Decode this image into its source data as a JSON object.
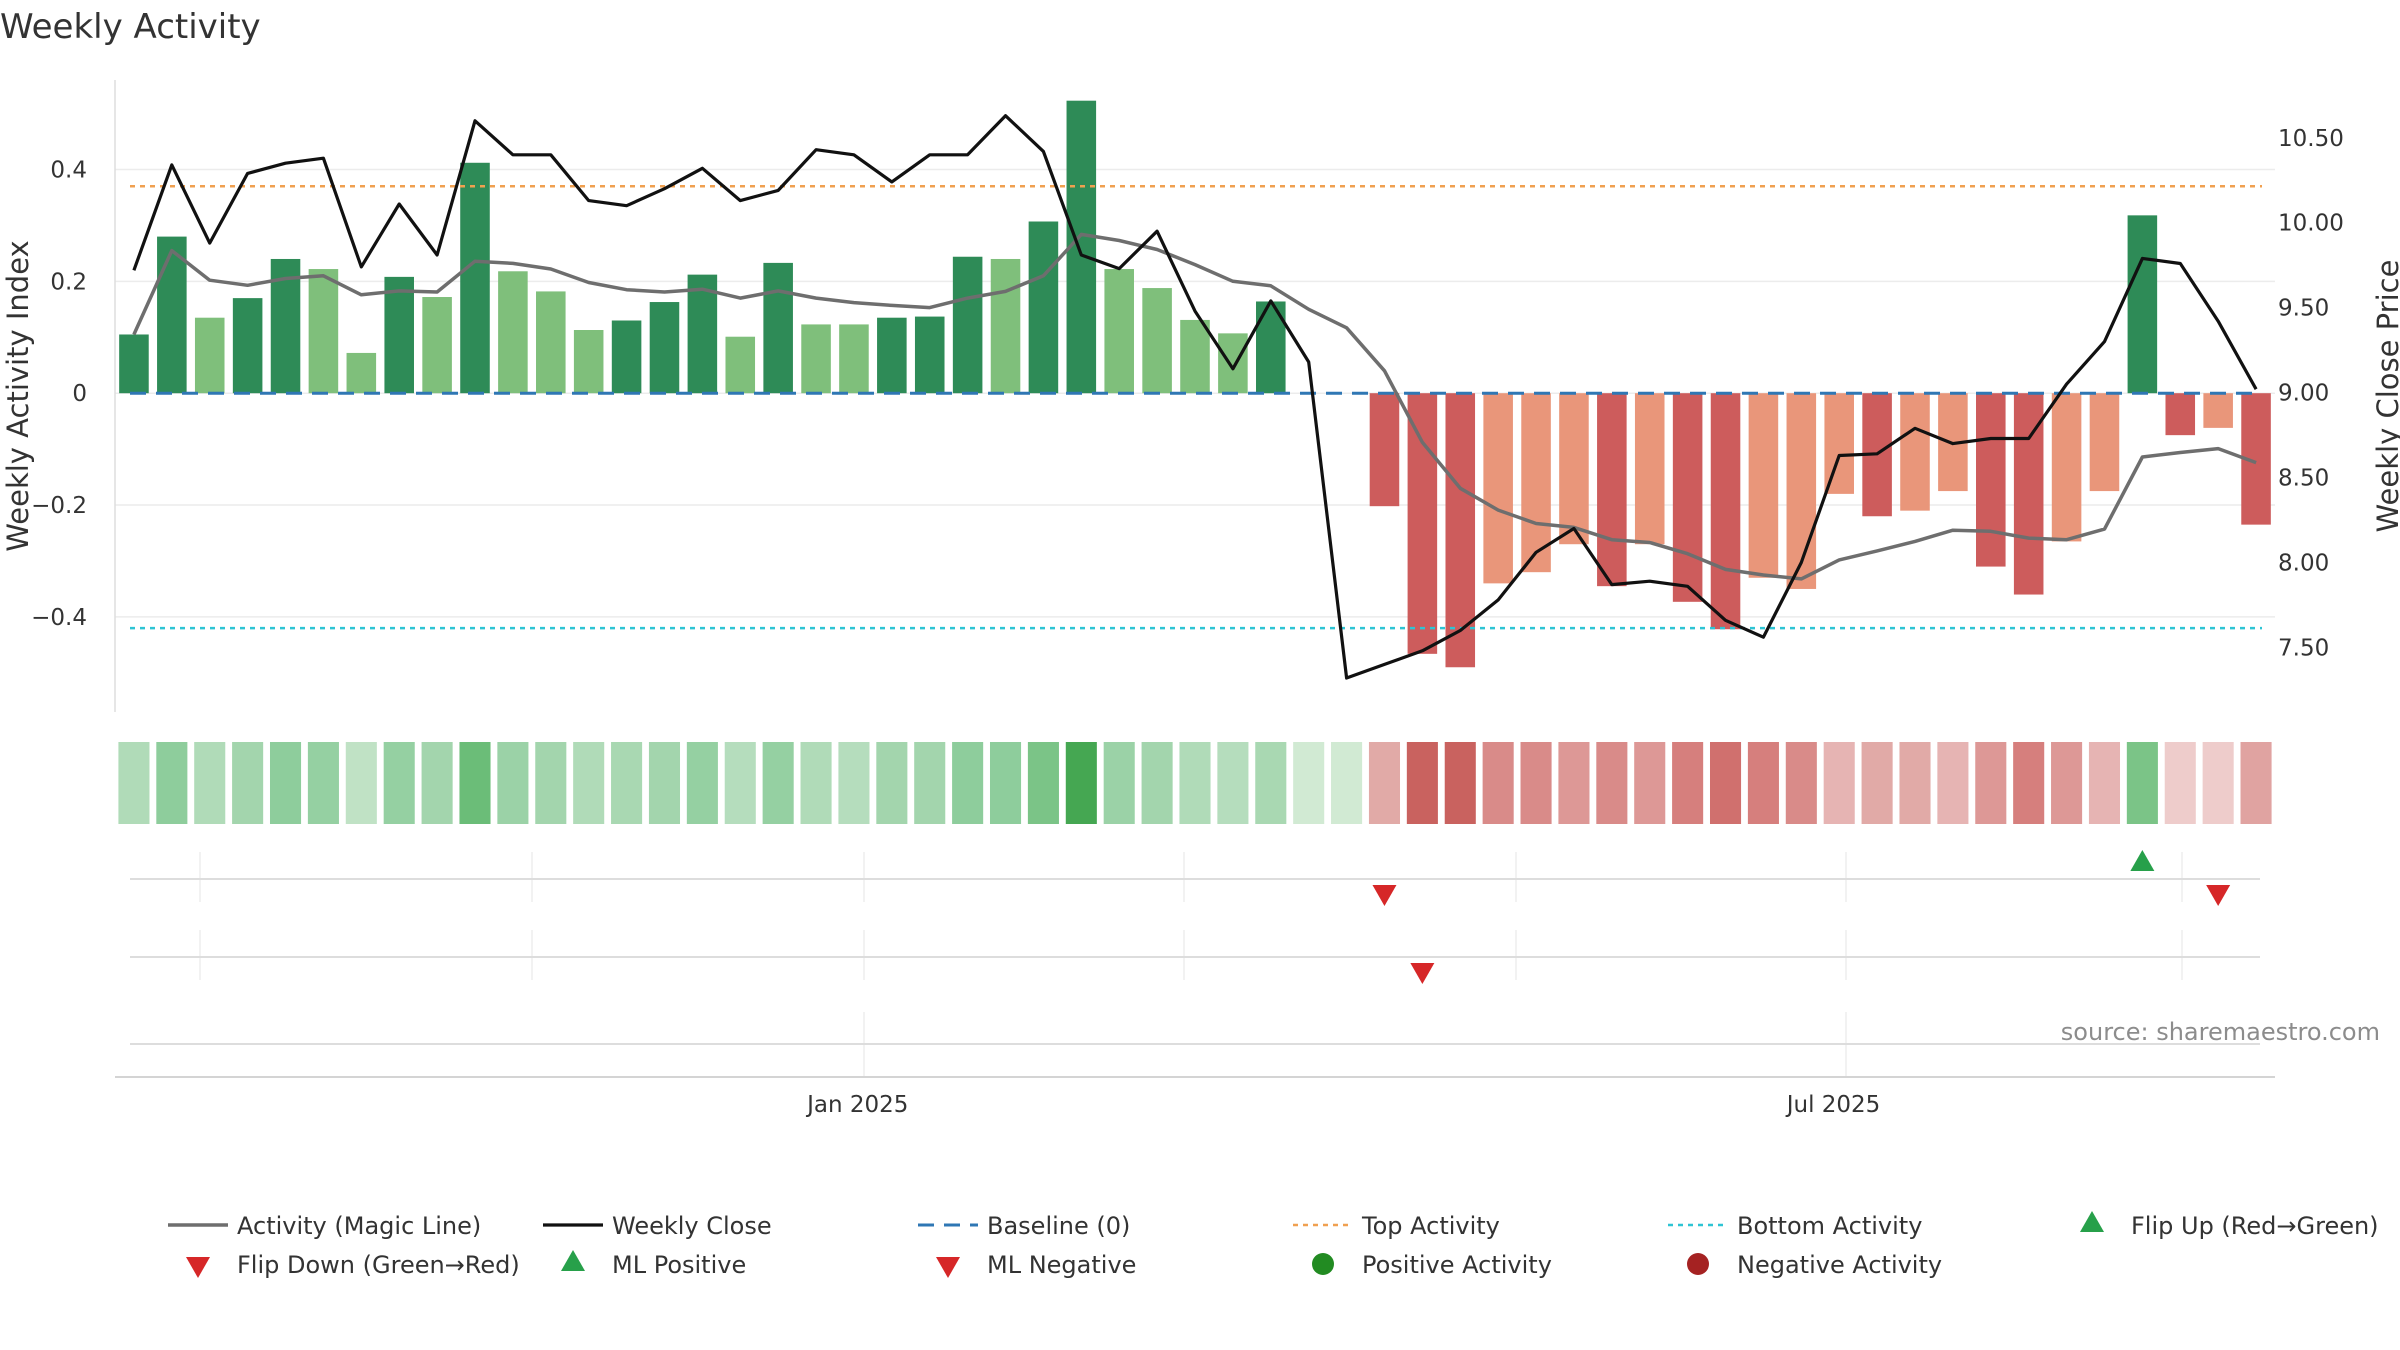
{
  "chart_data": {
    "type": "bar",
    "title": "Weekly Activity",
    "ylabel": "Weekly Activity Index",
    "y2label": "Weekly Close Price",
    "ylim": [
      -0.57,
      0.56
    ],
    "y2lim": [
      7.12,
      10.84
    ],
    "yticks": [
      {
        "value": 0.4,
        "label": "0.4"
      },
      {
        "value": 0.2,
        "label": "0.2"
      },
      {
        "value": 0,
        "label": "0"
      },
      {
        "value": -0.2,
        "label": "−0.2"
      },
      {
        "value": -0.4,
        "label": "−0.4"
      }
    ],
    "y2ticks": [
      {
        "value": 10.5,
        "label": "10.50"
      },
      {
        "value": 10.0,
        "label": "10.00"
      },
      {
        "value": 9.5,
        "label": "9.50"
      },
      {
        "value": 9.0,
        "label": "9.00"
      },
      {
        "value": 8.5,
        "label": "8.50"
      },
      {
        "value": 8.0,
        "label": "8.00"
      },
      {
        "value": 7.5,
        "label": "7.50"
      }
    ],
    "xticks": [
      {
        "index": 19.6,
        "label": "Jan 2025"
      },
      {
        "index": 45.35,
        "label": "Jul 2025"
      }
    ],
    "grid": true,
    "top_activity": 0.37,
    "bottom_activity": -0.42,
    "baseline": 0,
    "bars": [
      0.105,
      0.28,
      0.135,
      0.17,
      0.24,
      0.222,
      0.072,
      0.208,
      0.172,
      0.412,
      0.218,
      0.182,
      0.113,
      0.13,
      0.163,
      0.212,
      0.101,
      0.233,
      0.123,
      0.123,
      0.135,
      0.137,
      0.244,
      0.24,
      0.307,
      0.523,
      0.222,
      0.188,
      0.131,
      0.107,
      0.164,
      0,
      0,
      -0.202,
      -0.466,
      -0.49,
      -0.34,
      -0.32,
      -0.27,
      -0.345,
      -0.27,
      -0.373,
      -0.422,
      -0.33,
      -0.35,
      -0.18,
      -0.22,
      -0.21,
      -0.175,
      -0.31,
      -0.36,
      -0.265,
      -0.175,
      0.318,
      -0.075,
      -0.062,
      -0.235
    ],
    "bar_colors": [
      "#2e8b57",
      "#2e8b57",
      "#7fbf7b",
      "#2e8b57",
      "#2e8b57",
      "#7fbf7b",
      "#7fbf7b",
      "#2e8b57",
      "#7fbf7b",
      "#2e8b57",
      "#7fbf7b",
      "#7fbf7b",
      "#7fbf7b",
      "#2e8b57",
      "#2e8b57",
      "#2e8b57",
      "#7fbf7b",
      "#2e8b57",
      "#7fbf7b",
      "#7fbf7b",
      "#2e8b57",
      "#2e8b57",
      "#2e8b57",
      "#7fbf7b",
      "#2e8b57",
      "#2e8b57",
      "#7fbf7b",
      "#7fbf7b",
      "#7fbf7b",
      "#7fbf7b",
      "#2e8b57",
      "#7fbf7b",
      "#7fbf7b",
      "#cd5c5c",
      "#cd5c5c",
      "#cd5c5c",
      "#e9967a",
      "#e9967a",
      "#e9967a",
      "#cd5c5c",
      "#e9967a",
      "#cd5c5c",
      "#cd5c5c",
      "#e9967a",
      "#e9967a",
      "#e9967a",
      "#cd5c5c",
      "#e9967a",
      "#e9967a",
      "#cd5c5c",
      "#cd5c5c",
      "#e9967a",
      "#e9967a",
      "#2e8b57",
      "#cd5c5c",
      "#e9967a",
      "#cd5c5c"
    ],
    "magic_line": [
      0.105,
      0.255,
      0.202,
      0.193,
      0.205,
      0.21,
      0.176,
      0.183,
      0.181,
      0.236,
      0.232,
      0.222,
      0.198,
      0.185,
      0.181,
      0.186,
      0.17,
      0.183,
      0.17,
      0.162,
      0.157,
      0.153,
      0.17,
      0.182,
      0.21,
      0.284,
      0.273,
      0.257,
      0.23,
      0.2,
      0.192,
      0.15,
      0.117,
      0.04,
      -0.088,
      -0.17,
      -0.209,
      -0.233,
      -0.24,
      -0.262,
      -0.267,
      -0.287,
      -0.315,
      -0.325,
      -0.332,
      -0.298,
      -0.282,
      -0.265,
      -0.245,
      -0.247,
      -0.259,
      -0.262,
      -0.243,
      -0.114,
      -0.106,
      -0.099,
      -0.124
    ],
    "close": [
      9.72,
      10.34,
      9.88,
      10.29,
      10.35,
      10.38,
      9.74,
      10.11,
      9.81,
      10.6,
      10.4,
      10.4,
      10.13,
      10.1,
      10.2,
      10.32,
      10.13,
      10.19,
      10.43,
      10.4,
      10.24,
      10.4,
      10.4,
      10.63,
      10.42,
      9.81,
      9.73,
      9.95,
      9.48,
      9.14,
      9.54,
      9.18,
      7.32,
      7.4,
      7.48,
      7.6,
      7.78,
      8.06,
      8.2,
      7.87,
      7.89,
      7.86,
      7.66,
      7.56,
      8.0,
      8.63,
      8.64,
      8.79,
      8.7,
      8.73,
      8.73,
      9.05,
      9.3,
      9.79,
      9.76,
      9.42,
      9.02
    ],
    "activity_strip_colors": [
      "#b0dbb8",
      "#8ecd9c",
      "#b0dbb8",
      "#a3d5ad",
      "#8ecd9c",
      "#95d0a2",
      "#c0e2c5",
      "#95d0a2",
      "#a3d5ad",
      "#6bbd78",
      "#9bd2a7",
      "#a3d5ad",
      "#b0dbb8",
      "#a9d8b2",
      "#a3d5ad",
      "#95d0a2",
      "#b5ddbd",
      "#95d0a2",
      "#b0dbb8",
      "#b5ddbd",
      "#a3d5ad",
      "#a3d5ad",
      "#8ecd9c",
      "#8ecd9c",
      "#7bc487",
      "#45a752",
      "#9bd2a7",
      "#a3d5ad",
      "#b0dbb8",
      "#b5ddbd",
      "#a9d8b2",
      "#d1ead3",
      "#d1ead3",
      "#e1aaa7",
      "#c9625f",
      "#c9625f",
      "#d98b89",
      "#d98b89",
      "#dd9896",
      "#d98b89",
      "#dd9896",
      "#d67f7d",
      "#d0706e",
      "#d67f7d",
      "#d98b89",
      "#e6b4b3",
      "#e1aaa7",
      "#e1aaa7",
      "#e6b4b3",
      "#dd9896",
      "#d67f7d",
      "#dd9896",
      "#e6b4b3",
      "#7bc487",
      "#eecccb",
      "#eecccb",
      "#e0a3a1"
    ],
    "flip_up": [
      53
    ],
    "flip_down": [
      33,
      55
    ],
    "ml_negative": [
      34
    ],
    "source_text": "source: sharemaestro.com",
    "legend": [
      {
        "label": "Activity (Magic Line)",
        "marker": "line-grey"
      },
      {
        "label": "Weekly Close",
        "marker": "line-black"
      },
      {
        "label": "Baseline (0)",
        "marker": "dash-blue"
      },
      {
        "label": "Top Activity",
        "marker": "dot-orange"
      },
      {
        "label": "Bottom Activity",
        "marker": "dot-cyan"
      },
      {
        "label": "Flip Up (Red→Green)",
        "marker": "tri-up-green"
      },
      {
        "label": "Flip Down (Green→Red)",
        "marker": "tri-down-red"
      },
      {
        "label": "ML Positive",
        "marker": "tri-up-green"
      },
      {
        "label": "ML Negative",
        "marker": "tri-down-red"
      },
      {
        "label": "Positive Activity",
        "marker": "circle-green"
      },
      {
        "label": "Negative Activity",
        "marker": "circle-darkred"
      }
    ],
    "colors": {
      "magic_line": "#6e6e6e",
      "close_line": "#111111",
      "baseline": "#2f77b4",
      "top_line": "#f0a050",
      "bottom_line": "#2ec4d4",
      "grid": "#ececec",
      "marker_green": "#27a04a",
      "marker_red": "#d62728",
      "marker_darkred": "#a52222",
      "marker_circle_green": "#228b22"
    }
  }
}
